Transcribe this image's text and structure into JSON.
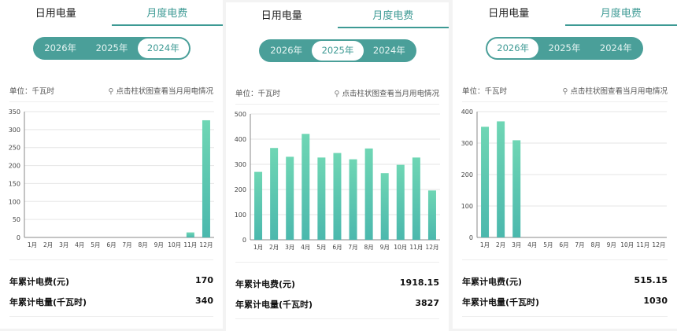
{
  "tabs": [
    "日用电量",
    "月度电费"
  ],
  "years": [
    "2026年",
    "2025年",
    "2024年"
  ],
  "unit": "单位：千瓦时",
  "hint": "点击柱状图查看当月用电情况",
  "labels": {
    "fee": "年累计电费(元)",
    "energy": "年累计电量(千瓦时)"
  },
  "colors": {
    "accent": "#4a9f99",
    "bar_top": "#6fd6b4",
    "bar_bottom": "#4bb8ad"
  },
  "panels": [
    {
      "selected_year": "2024年",
      "fee": "170",
      "energy": "340"
    },
    {
      "selected_year": "2025年",
      "fee": "1918.15",
      "energy": "3827"
    },
    {
      "selected_year": "2026年",
      "fee": "515.15",
      "energy": "1030"
    }
  ],
  "chart_data": [
    {
      "type": "bar",
      "title": "2024年",
      "categories": [
        "1月",
        "2月",
        "3月",
        "4月",
        "5月",
        "6月",
        "7月",
        "8月",
        "9月",
        "10月",
        "11月",
        "12月"
      ],
      "values": [
        0,
        0,
        0,
        0,
        0,
        0,
        0,
        0,
        0,
        0,
        14,
        326
      ],
      "ylim": [
        0,
        350
      ],
      "yticks": [
        0,
        50,
        100,
        150,
        200,
        250,
        300,
        350
      ],
      "ylabel": "千瓦时"
    },
    {
      "type": "bar",
      "title": "2025年",
      "categories": [
        "1月",
        "2月",
        "3月",
        "4月",
        "5月",
        "6月",
        "7月",
        "8月",
        "9月",
        "10月",
        "11月",
        "12月"
      ],
      "values": [
        270,
        365,
        330,
        421,
        327,
        345,
        320,
        363,
        265,
        298,
        327,
        196
      ],
      "ylim": [
        0,
        500
      ],
      "yticks": [
        0,
        100,
        200,
        300,
        400,
        500
      ],
      "ylabel": "千瓦时"
    },
    {
      "type": "bar",
      "title": "2026年",
      "categories": [
        "1月",
        "2月",
        "3月",
        "4月",
        "5月",
        "6月",
        "7月",
        "8月",
        "9月",
        "10月",
        "11月",
        "12月"
      ],
      "values": [
        352,
        369,
        309,
        0,
        0,
        0,
        0,
        0,
        0,
        0,
        0,
        0
      ],
      "ylim": [
        0,
        400
      ],
      "yticks": [
        0,
        100,
        200,
        300,
        400
      ],
      "ylabel": "千瓦时"
    }
  ]
}
